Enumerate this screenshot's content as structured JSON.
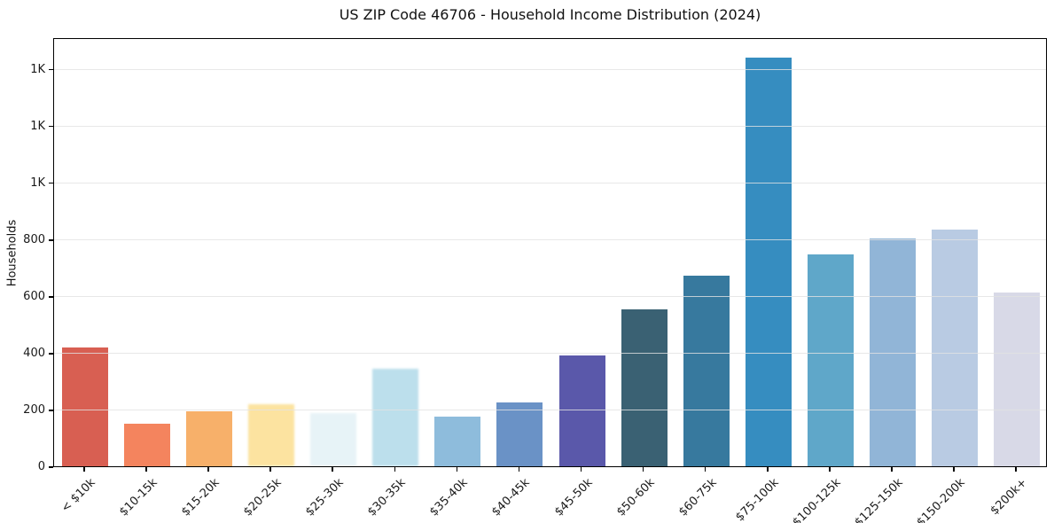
{
  "chart_data": {
    "type": "bar",
    "title": "US ZIP Code 46706 - Household Income Distribution (2024)",
    "xlabel": "",
    "ylabel": "Households",
    "categories": [
      "< $10k",
      "$10-15k",
      "$15-20k",
      "$20-25k",
      "$25-30k",
      "$30-35k",
      "$35-40k",
      "$40-45k",
      "$45-50k",
      "$50-60k",
      "$60-75k",
      "$75-100k",
      "$100-125k",
      "$125-150k",
      "$150-200k",
      "$200k+"
    ],
    "values": [
      418,
      150,
      193,
      220,
      188,
      343,
      176,
      225,
      390,
      553,
      673,
      1440,
      748,
      802,
      835,
      612
    ],
    "bar_colors": [
      "#d85f52",
      "#f4845e",
      "#f7b06a",
      "#fce3a0",
      "#e7f3f7",
      "#bcdfec",
      "#8ebcdc",
      "#6a92c6",
      "#5a58aa",
      "#3a6173",
      "#37799e",
      "#368dc0",
      "#5fa7c9",
      "#91b5d7",
      "#b9cbe3",
      "#d8d9e7"
    ],
    "ylim": [
      0,
      1512
    ],
    "yticks": {
      "values": [
        0,
        200,
        400,
        600,
        800,
        1000,
        1200,
        1400
      ],
      "labels": [
        "0",
        "200",
        "400",
        "600",
        "800",
        "1K",
        "1K",
        "1K"
      ]
    },
    "grid": "horizontal-only, light gray, drawn above bars",
    "legend": "none",
    "background_color": "#ffffff",
    "spine_color": "#000000"
  }
}
